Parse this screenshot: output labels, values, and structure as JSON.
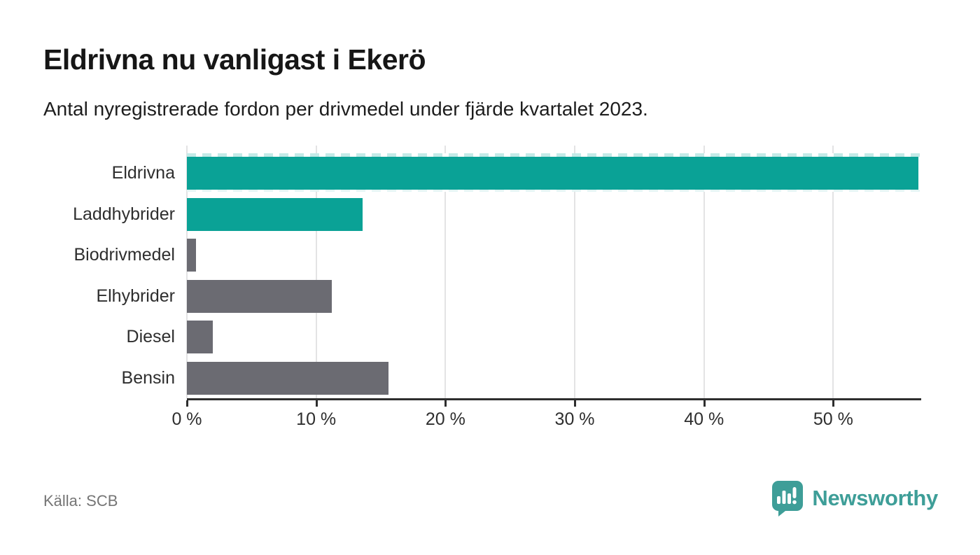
{
  "title": "Eldrivna nu vanligast i Ekerö",
  "subtitle": "Antal nyregistrerade fordon per drivmedel under fjärde kvartalet 2023.",
  "source": "Källa: SCB",
  "branding": {
    "name": "Newsworthy",
    "logo_icon": "speech-bubble-bar-chart-icon",
    "color": "#3e9e98"
  },
  "colors": {
    "highlight_bar": "#0aa296",
    "default_bar": "#6b6b72",
    "axis": "#2e2e2e",
    "grid": "#e3e3e4",
    "clip_dash": "#c3eae7"
  },
  "chart_data": {
    "type": "bar",
    "orientation": "horizontal",
    "categories": [
      "Eldrivna",
      "Laddhybrider",
      "Biodrivmedel",
      "Elhybrider",
      "Diesel",
      "Bensin"
    ],
    "values": [
      56.6,
      13.6,
      0.7,
      11.2,
      2.0,
      15.6
    ],
    "unit": "%",
    "highlighted": [
      true,
      true,
      false,
      false,
      false,
      false
    ],
    "clipped_bar": "Eldrivna",
    "x_ticks": [
      0,
      10,
      20,
      30,
      40,
      50
    ],
    "x_tick_labels": [
      "0 %",
      "10 %",
      "20 %",
      "30 %",
      "40 %",
      "50 %"
    ],
    "xlim": [
      0,
      56.8
    ],
    "ylabel": "",
    "xlabel": "",
    "grid": "vertical",
    "legend": "none"
  }
}
